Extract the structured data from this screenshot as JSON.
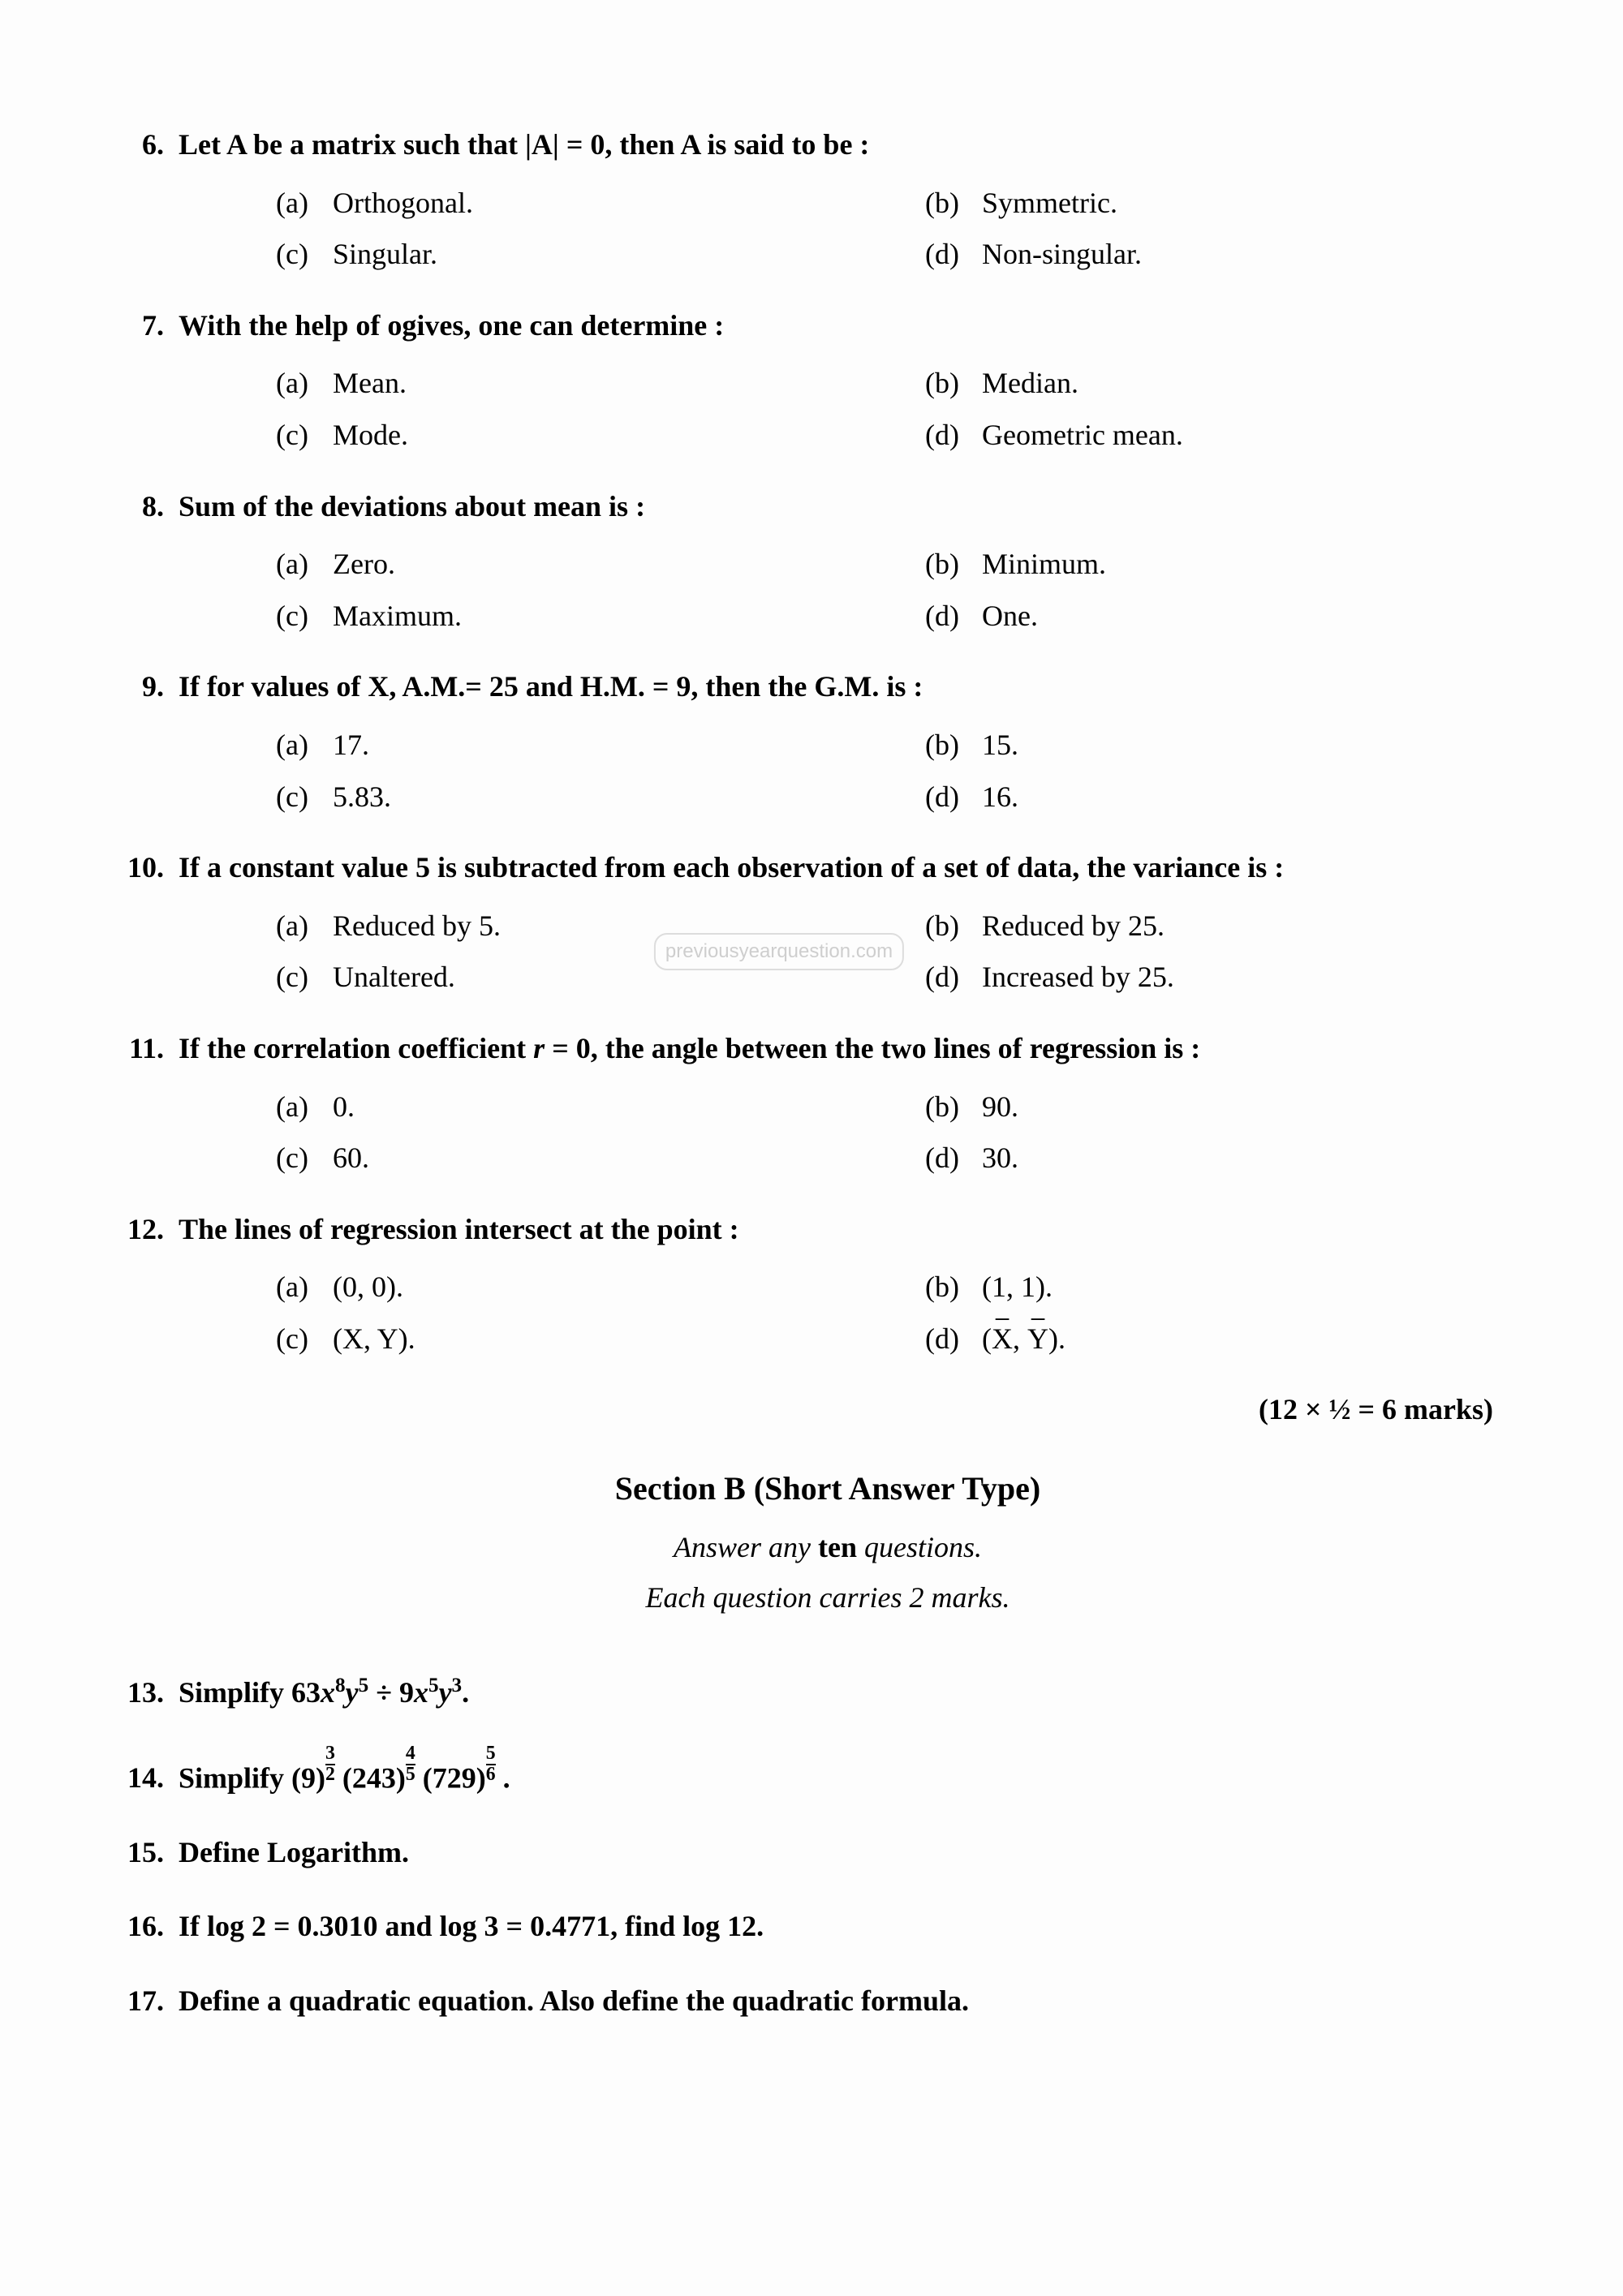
{
  "watermark": "previousyearquestion.com",
  "mcq_questions": [
    {
      "num": "6.",
      "text": "Let A be a matrix such that |A| = 0, then A is said to be :",
      "opts": {
        "a": "Orthogonal.",
        "b": "Symmetric.",
        "c": "Singular.",
        "d": "Non-singular."
      }
    },
    {
      "num": "7.",
      "text": "With the help of ogives, one can determine :",
      "opts": {
        "a": "Mean.",
        "b": "Median.",
        "c": "Mode.",
        "d": "Geometric mean."
      }
    },
    {
      "num": "8.",
      "text": "Sum of the deviations about mean is :",
      "opts": {
        "a": "Zero.",
        "b": "Minimum.",
        "c": "Maximum.",
        "d": "One."
      }
    },
    {
      "num": "9.",
      "text": "If for values of X, A.M.= 25 and H.M. = 9, then the G.M. is :",
      "opts": {
        "a": "17.",
        "b": "15.",
        "c": "5.83.",
        "d": "16."
      }
    },
    {
      "num": "10.",
      "text": "If a constant value 5 is subtracted from each observation of a set of data, the variance is :",
      "opts": {
        "a": "Reduced by 5.",
        "b": "Reduced by 25.",
        "c": "Unaltered.",
        "d": "Increased by 25."
      }
    },
    {
      "num": "11.",
      "text_html": "If the correlation coefficient <span class='ital'>r</span> = 0, the angle between the two lines of regression is :",
      "opts": {
        "a": "0.",
        "b": "90.",
        "c": "60.",
        "d": "30."
      }
    },
    {
      "num": "12.",
      "text": "The lines of regression intersect at the point :",
      "opts": {
        "a": "(0, 0).",
        "b": "(1, 1).",
        "c": "(X, Y).",
        "d_html": "(<span class='xbar'>X</span>, <span class='xbar'>Y</span>)."
      }
    }
  ],
  "marks_line": "(12 × ½ = 6 marks)",
  "section": {
    "title": "Section B (Short Answer Type)",
    "sub1_pre": "Answer any ",
    "sub1_bold": "ten",
    "sub1_post": " questions.",
    "sub2": "Each question carries 2 marks."
  },
  "short_questions": [
    {
      "num": "13.",
      "html": "Simplify 63<span class='ital'>x</span><sup>8</sup><span class='ital'>y</span><sup>5</sup> ÷ 9<span class='ital'>x</span><sup>5</sup><span class='ital'>y</span><sup>3</sup>."
    },
    {
      "num": "14.",
      "html": "Simplify (9)<span class='frac'><span class='num'>3</span><span class='den'>2</span></span> (243)<span class='frac'><span class='num'>4</span><span class='den'>5</span></span> (729)<span class='frac'><span class='num'>5</span><span class='den'>6</span></span> ."
    },
    {
      "num": "15.",
      "html": "Define Logarithm."
    },
    {
      "num": "16.",
      "html": "If log 2 = 0.3010 and log 3 = 0.4771, find log 12."
    },
    {
      "num": "17.",
      "html": "Define a quadratic equation. Also define the quadratic formula."
    }
  ],
  "opt_labels": {
    "a": "(a)",
    "b": "(b)",
    "c": "(c)",
    "d": "(d)"
  }
}
